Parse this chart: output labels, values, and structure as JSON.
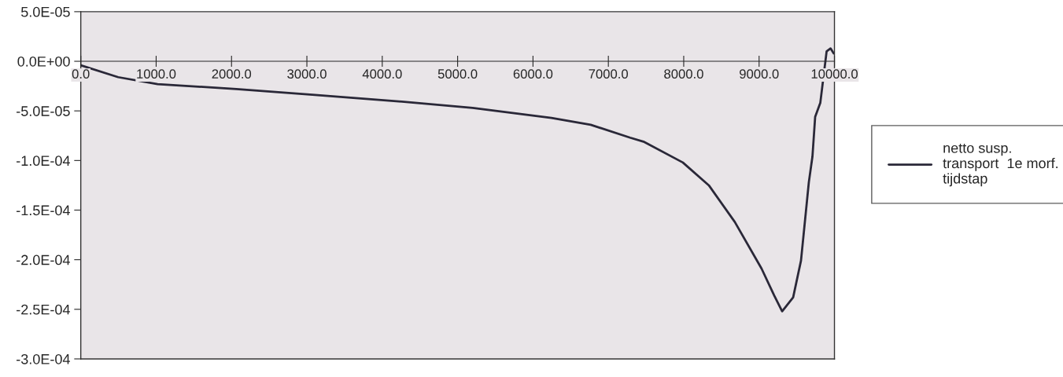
{
  "chart_data": {
    "type": "line",
    "legend": "right",
    "grid": false,
    "line_style": "solid",
    "marker": "none",
    "xlim": [
      0,
      10000
    ],
    "ylim": [
      -0.0003,
      5e-05
    ],
    "xticks": [
      {
        "value": 0,
        "label": "0.0"
      },
      {
        "value": 1000,
        "label": "1000.0"
      },
      {
        "value": 2000,
        "label": "2000.0"
      },
      {
        "value": 3000,
        "label": "3000.0"
      },
      {
        "value": 4000,
        "label": "4000.0"
      },
      {
        "value": 5000,
        "label": "5000.0"
      },
      {
        "value": 6000,
        "label": "6000.0"
      },
      {
        "value": 7000,
        "label": "7000.0"
      },
      {
        "value": 8000,
        "label": "8000.0"
      },
      {
        "value": 9000,
        "label": "9000.0"
      },
      {
        "value": 10000,
        "label": "10000.0"
      }
    ],
    "yticks": [
      {
        "value": 5e-05,
        "label": "5.0E-05"
      },
      {
        "value": 0,
        "label": "0.0E+00"
      },
      {
        "value": -5e-05,
        "label": "-5.0E-05"
      },
      {
        "value": -0.0001,
        "label": "-1.0E-04"
      },
      {
        "value": -0.00015,
        "label": "-1.5E-04"
      },
      {
        "value": -0.0002,
        "label": "-2.0E-04"
      },
      {
        "value": -0.00025,
        "label": "-2.5E-04"
      },
      {
        "value": -0.0003,
        "label": "-3.0E-04"
      }
    ],
    "series": [
      {
        "name": "netto susp.\ntransport  1e morf.\ntijdstap",
        "color": "#2a2838",
        "x": [
          0,
          496,
          1019,
          2064,
          3109,
          4154,
          5199,
          6244,
          6766,
          7288,
          7466,
          7988,
          8333,
          8678,
          9033,
          9200,
          9306,
          9452,
          9556,
          9660,
          9708,
          9744,
          9812,
          9896,
          9948,
          9990
        ],
        "values": [
          -4e-06,
          -1.6e-05,
          -2.3e-05,
          -2.8e-05,
          -3.4e-05,
          -4e-05,
          -4.7e-05,
          -5.7e-05,
          -6.4e-05,
          -7.7e-05,
          -8.1e-05,
          -0.000102,
          -0.000125,
          -0.000162,
          -0.000209,
          -0.000236,
          -0.000252,
          -0.000238,
          -0.000201,
          -0.000122,
          -9.6e-05,
          -5.6e-05,
          -4.2e-05,
          1e-05,
          1.3e-05,
          8e-06
        ]
      }
    ]
  }
}
